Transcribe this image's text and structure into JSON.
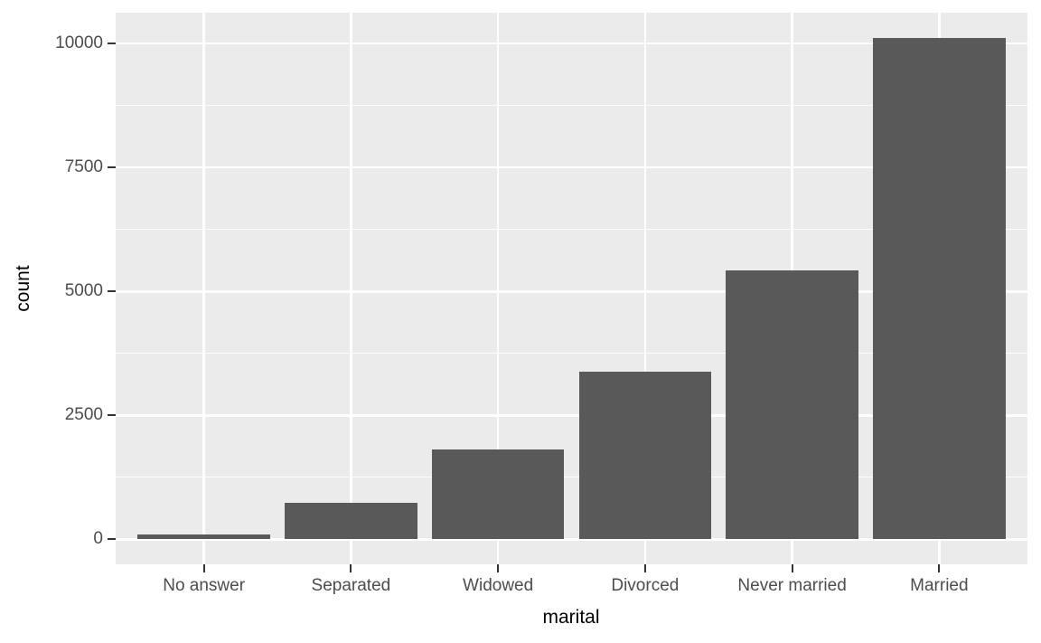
{
  "chart_data": {
    "type": "bar",
    "title": "",
    "xlabel": "marital",
    "ylabel": "count",
    "categories": [
      "No answer",
      "Separated",
      "Widowed",
      "Divorced",
      "Never married",
      "Married"
    ],
    "values": [
      93,
      743,
      1807,
      3383,
      5416,
      10117
    ],
    "series": [
      {
        "name": "count",
        "values": [
          93,
          743,
          1807,
          3383,
          5416,
          10117
        ]
      }
    ],
    "y_major_ticks": [
      0,
      2500,
      5000,
      7500,
      10000
    ],
    "y_minor_ticks": [
      1250,
      3750,
      6250,
      8750
    ],
    "ylim": [
      0,
      10117
    ],
    "axis_expansion": {
      "y_mult": 0.05,
      "x_add": 0.6
    },
    "bar_relative_width": 0.9,
    "grid": "major-and-minor-horizontal, major-vertical-at-categories",
    "legend_position": "none",
    "style": "ggplot2-grey-theme",
    "colors": {
      "bar_fill": "#595959",
      "panel_background": "#EBEBEB",
      "grid_major": "#FFFFFF",
      "grid_minor": "#FFFFFF",
      "tick_label": "#4D4D4D",
      "axis_title": "#000000",
      "tick_mark": "#333333",
      "outer_background": "#FFFFFF"
    }
  }
}
